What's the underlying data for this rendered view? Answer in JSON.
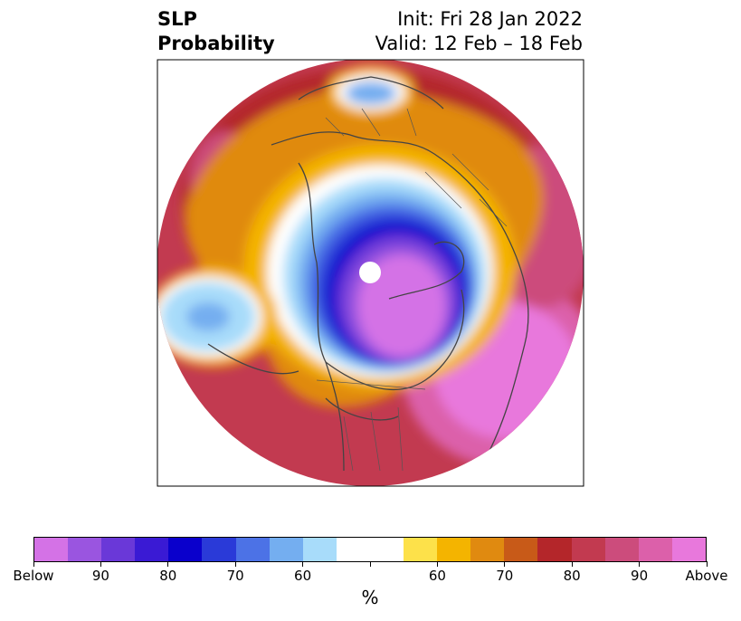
{
  "title": {
    "left_line1": "SLP",
    "left_line2": "Probability",
    "right_line1": "Init: Fri 28 Jan 2022",
    "right_line2": "Valid: 12 Feb – 18 Feb"
  },
  "colors": {
    "below": [
      "#d472e6",
      "#9a55e0",
      "#6a38d8",
      "#3a1ad4",
      "#0a00cc",
      "#2a3ad8",
      "#4c72e6",
      "#74aef0",
      "#a8dcfa"
    ],
    "neutral": "#ffffff",
    "above": [
      "#fde14a",
      "#f4b400",
      "#e08a10",
      "#c85a18",
      "#b4262a",
      "#c23a50",
      "#cc4c7c",
      "#dc60aa",
      "#e878dc"
    ]
  },
  "colorbar": {
    "tick_labels": [
      "Below",
      "90",
      "80",
      "70",
      "60",
      "",
      "60",
      "70",
      "80",
      "90",
      "Above"
    ],
    "unit": "%"
  }
}
